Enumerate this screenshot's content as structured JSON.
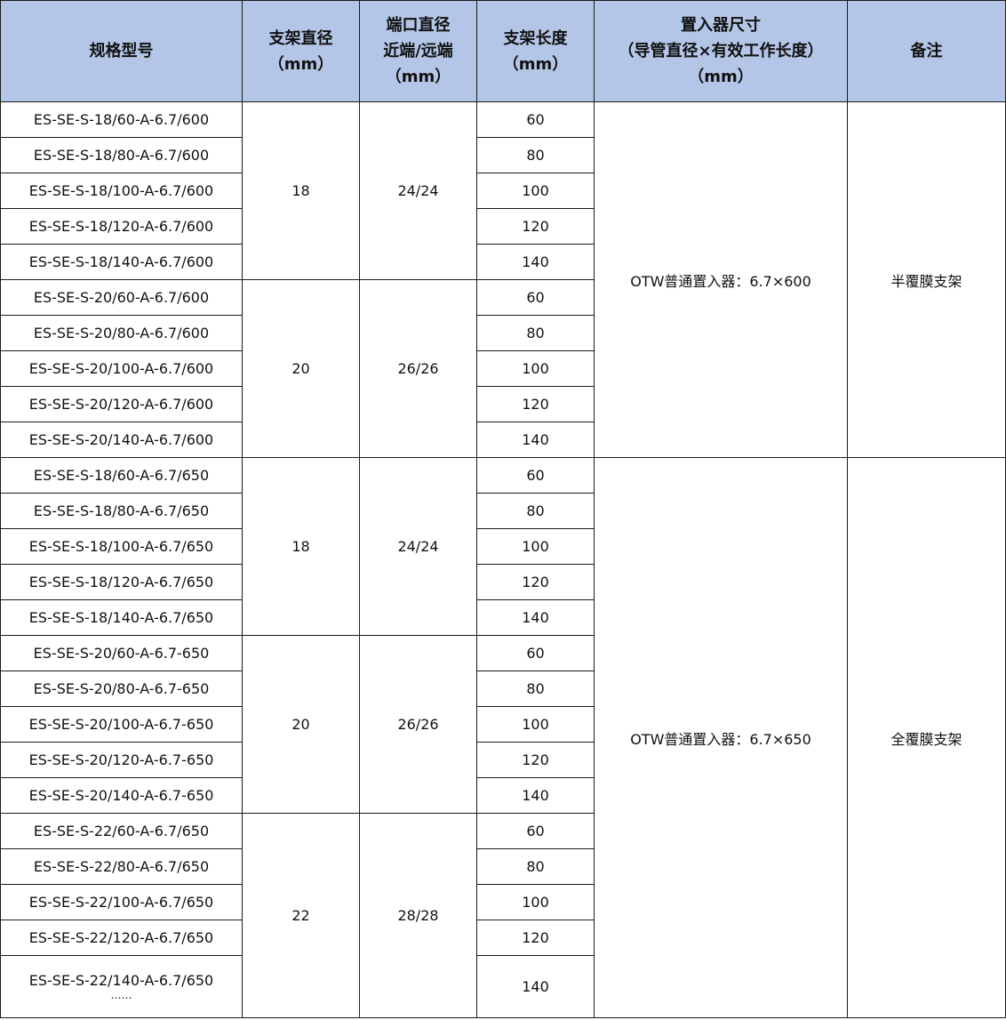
{
  "header": {
    "spec": [
      "规格型号"
    ],
    "stent_diameter": [
      "支架直径",
      "（mm）"
    ],
    "port_diameter": [
      "端口直径",
      "近端/远端",
      "（mm）"
    ],
    "stent_length": [
      "支架长度",
      "（mm）"
    ],
    "delivery": [
      "置入器尺寸",
      "（导管直径×有效工作长度）",
      "（mm）"
    ],
    "remark": [
      "备注"
    ]
  },
  "sections": [
    {
      "delivery": "OTW普通置入器：6.7×600",
      "remark": "半覆膜支架",
      "groups": [
        {
          "diameter": "18",
          "port": "24/24",
          "rows": [
            {
              "spec": "ES-SE-S-18/60-A-6.7/600",
              "length": "60"
            },
            {
              "spec": "ES-SE-S-18/80-A-6.7/600",
              "length": "80"
            },
            {
              "spec": "ES-SE-S-18/100-A-6.7/600",
              "length": "100"
            },
            {
              "spec": "ES-SE-S-18/120-A-6.7/600",
              "length": "120"
            },
            {
              "spec": "ES-SE-S-18/140-A-6.7/600",
              "length": "140"
            }
          ]
        },
        {
          "diameter": "20",
          "port": "26/26",
          "rows": [
            {
              "spec": "ES-SE-S-20/60-A-6.7/600",
              "length": "60"
            },
            {
              "spec": "ES-SE-S-20/80-A-6.7/600",
              "length": "80"
            },
            {
              "spec": "ES-SE-S-20/100-A-6.7/600",
              "length": "100"
            },
            {
              "spec": "ES-SE-S-20/120-A-6.7/600",
              "length": "120"
            },
            {
              "spec": "ES-SE-S-20/140-A-6.7/600",
              "length": "140"
            }
          ]
        }
      ]
    },
    {
      "delivery": "OTW普通置入器：6.7×650",
      "remark": "全覆膜支架",
      "groups": [
        {
          "diameter": "18",
          "port": "24/24",
          "rows": [
            {
              "spec": "ES-SE-S-18/60-A-6.7/650",
              "length": "60"
            },
            {
              "spec": "ES-SE-S-18/80-A-6.7/650",
              "length": "80"
            },
            {
              "spec": "ES-SE-S-18/100-A-6.7/650",
              "length": "100"
            },
            {
              "spec": "ES-SE-S-18/120-A-6.7/650",
              "length": "120"
            },
            {
              "spec": "ES-SE-S-18/140-A-6.7/650",
              "length": "140"
            }
          ]
        },
        {
          "diameter": "20",
          "port": "26/26",
          "rows": [
            {
              "spec": "ES-SE-S-20/60-A-6.7-650",
              "length": "60"
            },
            {
              "spec": "ES-SE-S-20/80-A-6.7-650",
              "length": "80"
            },
            {
              "spec": "ES-SE-S-20/100-A-6.7-650",
              "length": "100"
            },
            {
              "spec": "ES-SE-S-20/120-A-6.7-650",
              "length": "120"
            },
            {
              "spec": "ES-SE-S-20/140-A-6.7-650",
              "length": "140"
            }
          ]
        },
        {
          "diameter": "22",
          "port": "28/28",
          "rows": [
            {
              "spec": "ES-SE-S-22/60-A-6.7/650",
              "length": "60"
            },
            {
              "spec": "ES-SE-S-22/80-A-6.7/650",
              "length": "80"
            },
            {
              "spec": "ES-SE-S-22/100-A-6.7/650",
              "length": "100"
            },
            {
              "spec": "ES-SE-S-22/120-A-6.7/650",
              "length": "120"
            },
            {
              "spec": "ES-SE-S-22/140-A-6.7/650",
              "length": "140",
              "continuation": "……"
            }
          ]
        }
      ]
    }
  ]
}
